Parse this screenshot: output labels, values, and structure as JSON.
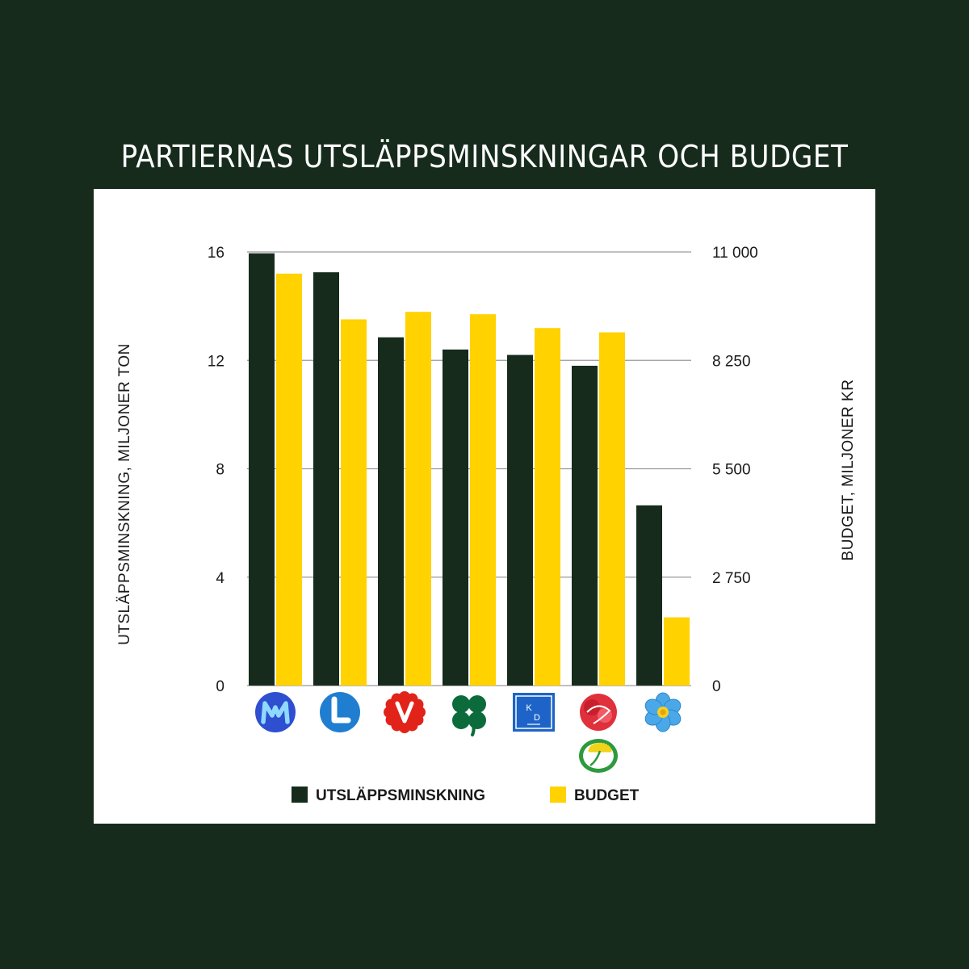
{
  "title": "PARTIERNAS UTSLÄPPSMINSKNINGAR OCH BUDGET",
  "chart_data": {
    "type": "bar",
    "categories": [
      "M",
      "L",
      "V",
      "C",
      "KD",
      "S/MP",
      "SD"
    ],
    "category_icons": [
      "m-party-logo",
      "l-party-logo",
      "v-party-logo",
      "c-party-logo",
      "kd-party-logo",
      "s-mp-party-logos",
      "sd-party-logo"
    ],
    "series": [
      {
        "name": "UTSLÄPPSMINSKNING",
        "axis": "left",
        "color": "#162b1c",
        "values": [
          15.95,
          15.25,
          12.85,
          12.4,
          12.2,
          11.8,
          6.65
        ]
      },
      {
        "name": "BUDGET",
        "axis": "right",
        "color": "#ffd200",
        "values": [
          10450,
          9290,
          9480,
          9420,
          9070,
          8960,
          1730
        ]
      }
    ],
    "ylabel_left": "UTSLÄPPSMINSKNING, MILJONER TON",
    "ylabel_right": "BUDGET, MILJONER KR",
    "ylim_left": [
      0,
      16
    ],
    "ylim_right": [
      0,
      11000
    ],
    "yticks_left": [
      0,
      4,
      8,
      12,
      16
    ],
    "yticks_right": [
      0,
      2750,
      5500,
      8250,
      11000
    ],
    "yticks_right_labels": [
      "0",
      "2 750",
      "5 500",
      "8 250",
      "11 000"
    ],
    "grid": true,
    "legend_position": "bottom-center"
  }
}
